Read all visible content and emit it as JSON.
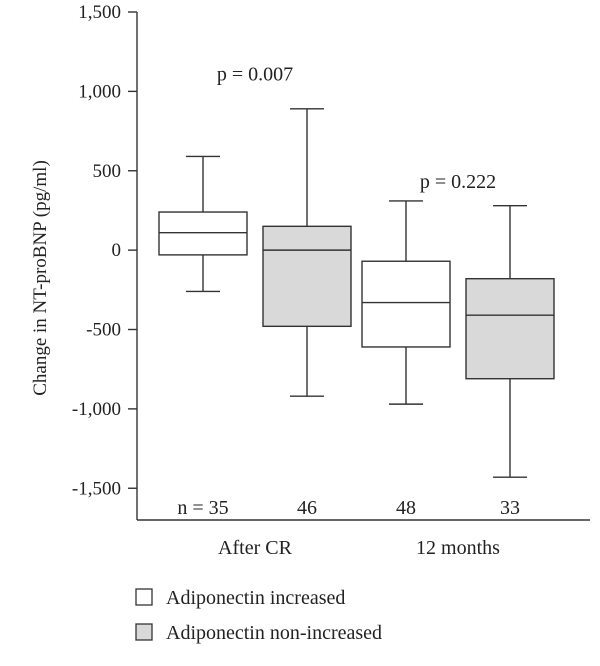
{
  "chart_data": {
    "type": "box",
    "ylabel": "Change in NT-proBNP (pg/ml)",
    "xlabel": "",
    "ylim": [
      -1700,
      1500
    ],
    "yticks": [
      {
        "value": 1500,
        "label": "1,500"
      },
      {
        "value": 1000,
        "label": "1,000"
      },
      {
        "value": 500,
        "label": "500"
      },
      {
        "value": 0,
        "label": "0"
      },
      {
        "value": -500,
        "label": "-500"
      },
      {
        "value": -1000,
        "label": "-1,000"
      },
      {
        "value": -1500,
        "label": "-1,500"
      }
    ],
    "categories": [
      "After CR",
      "12 months"
    ],
    "series": [
      {
        "name": "Adiponectin increased",
        "fill": "#ffffff",
        "boxes": [
          {
            "min": -260,
            "q1": -30,
            "median": 110,
            "q3": 240,
            "max": 590,
            "n_label": "n = 35"
          },
          {
            "min": -970,
            "q1": -610,
            "median": -330,
            "q3": -70,
            "max": 310,
            "n_label": "48"
          }
        ]
      },
      {
        "name": "Adiponectin non-increased",
        "fill": "#d9d9d9",
        "boxes": [
          {
            "min": -920,
            "q1": -480,
            "median": 0,
            "q3": 150,
            "max": 890,
            "n_label": "46"
          },
          {
            "min": -1430,
            "q1": -810,
            "median": -410,
            "q3": -180,
            "max": 280,
            "n_label": "33"
          }
        ]
      }
    ],
    "annotations": [
      {
        "text": "p = 0.007",
        "group": 0,
        "value": 1070
      },
      {
        "text": "p = 0.222",
        "group": 1,
        "value": 390
      }
    ],
    "grid": false,
    "legend_position": "bottom-left"
  }
}
